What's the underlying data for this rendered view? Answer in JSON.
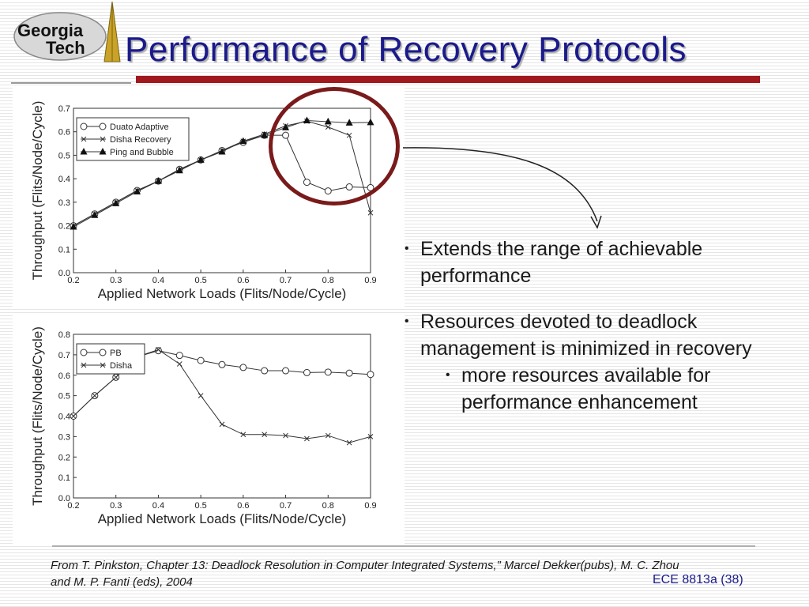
{
  "header": {
    "logo_line1": "Georgia",
    "logo_line2": "Tech",
    "title": "Performance of Recovery Protocols"
  },
  "colors": {
    "title": "#1a1a8c",
    "title_bar": "#a1191c",
    "highlight_circle": "#7a1a1a"
  },
  "chart_data": [
    {
      "type": "line",
      "xlabel": "Applied Network Loads (Flits/Node/Cycle)",
      "ylabel": "Throughput (Flits/Node/Cycle)",
      "xlim": [
        0.2,
        0.9
      ],
      "ylim": [
        0,
        0.7
      ],
      "x_ticks": [
        "0.2",
        "0.3",
        "0.4",
        "0.5",
        "0.6",
        "0.7",
        "0.8",
        "0.9"
      ],
      "y_ticks": [
        "0.0",
        "0.1",
        "0.2",
        "0.3",
        "0.4",
        "0.5",
        "0.6",
        "0.7"
      ],
      "legend_position": "top-left",
      "series": [
        {
          "name": "Duato Adaptive",
          "marker": "circle",
          "x": [
            0.2,
            0.25,
            0.3,
            0.35,
            0.4,
            0.45,
            0.5,
            0.55,
            0.6,
            0.65,
            0.7,
            0.75,
            0.8,
            0.85,
            0.9
          ],
          "values": [
            0.2,
            0.25,
            0.3,
            0.35,
            0.39,
            0.44,
            0.48,
            0.52,
            0.555,
            0.585,
            0.585,
            0.385,
            0.348,
            0.365,
            0.362
          ]
        },
        {
          "name": "Disha Recovery",
          "marker": "x",
          "x": [
            0.2,
            0.25,
            0.3,
            0.35,
            0.4,
            0.45,
            0.5,
            0.55,
            0.6,
            0.65,
            0.7,
            0.75,
            0.8,
            0.85,
            0.9
          ],
          "values": [
            0.2,
            0.25,
            0.3,
            0.35,
            0.39,
            0.44,
            0.48,
            0.52,
            0.56,
            0.59,
            0.625,
            0.645,
            0.62,
            0.585,
            0.255
          ]
        },
        {
          "name": "Ping and Bubble",
          "marker": "triangle",
          "x": [
            0.2,
            0.25,
            0.3,
            0.35,
            0.4,
            0.45,
            0.5,
            0.55,
            0.6,
            0.65,
            0.7,
            0.75,
            0.8,
            0.85,
            0.9
          ],
          "values": [
            0.195,
            0.245,
            0.295,
            0.345,
            0.39,
            0.435,
            0.48,
            0.515,
            0.56,
            0.585,
            0.618,
            0.648,
            0.643,
            0.638,
            0.64
          ]
        }
      ]
    },
    {
      "type": "line",
      "xlabel": "Applied Network Loads (Flits/Node/Cycle)",
      "ylabel": "Throughput (Flits/Node/Cycle)",
      "xlim": [
        0.2,
        0.9
      ],
      "ylim": [
        0,
        0.8
      ],
      "x_ticks": [
        "0.2",
        "0.3",
        "0.4",
        "0.5",
        "0.6",
        "0.7",
        "0.8",
        "0.9"
      ],
      "y_ticks": [
        "0.0",
        "0.1",
        "0.2",
        "0.3",
        "0.4",
        "0.5",
        "0.6",
        "0.7",
        "0.8"
      ],
      "legend_position": "top-left",
      "series": [
        {
          "name": "PB",
          "marker": "circle",
          "x": [
            0.2,
            0.25,
            0.3,
            0.35,
            0.4,
            0.45,
            0.5,
            0.55,
            0.6,
            0.65,
            0.7,
            0.75,
            0.8,
            0.85,
            0.9
          ],
          "values": [
            0.4,
            0.5,
            0.59,
            0.69,
            0.72,
            0.697,
            0.672,
            0.652,
            0.638,
            0.622,
            0.622,
            0.613,
            0.615,
            0.61,
            0.604
          ]
        },
        {
          "name": "Disha",
          "marker": "x",
          "x": [
            0.2,
            0.25,
            0.3,
            0.35,
            0.4,
            0.45,
            0.5,
            0.55,
            0.6,
            0.65,
            0.7,
            0.75,
            0.8,
            0.85,
            0.9
          ],
          "values": [
            0.4,
            0.5,
            0.59,
            0.69,
            0.725,
            0.655,
            0.5,
            0.36,
            0.31,
            0.31,
            0.305,
            0.29,
            0.305,
            0.27,
            0.3
          ]
        }
      ]
    }
  ],
  "bullets": [
    {
      "text": "Extends the range of achievable performance"
    },
    {
      "text": "Resources devoted to deadlock management is minimized in recovery"
    }
  ],
  "sub_bullets": [
    {
      "text": "more resources available for performance enhancement"
    }
  ],
  "footer": {
    "citation": "From T. Pinkston, Chapter 13: Deadlock Resolution in Computer Integrated Systems,” Marcel Dekker(pubs), M. C. Zhou and M. P. Fanti (eds), 2004",
    "slide_number": "ECE 8813a  (38)"
  }
}
